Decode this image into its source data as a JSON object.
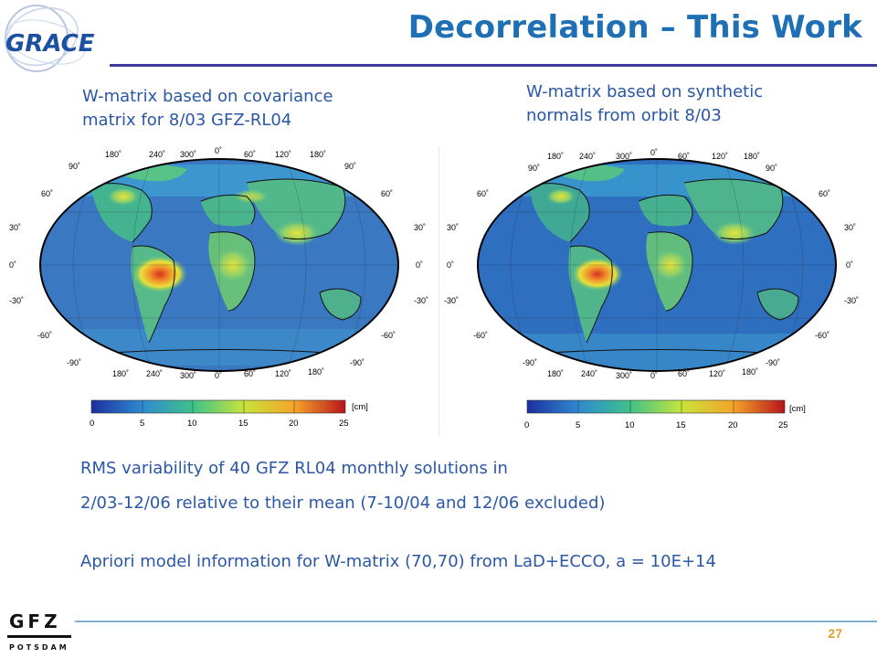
{
  "logo": {
    "text": "GRACE"
  },
  "title": "Decorrelation – This Work",
  "captions": {
    "left": [
      "W-matrix based on covariance",
      "matrix for 8/03 GFZ-RL04"
    ],
    "right": [
      "W-matrix based on synthetic",
      "normals from orbit 8/03"
    ]
  },
  "maps": {
    "lat_labels": [
      "90˚",
      "60˚",
      "30˚",
      "0˚",
      "-30˚",
      "-60˚",
      "-90˚"
    ],
    "lon_top": [
      "180˚",
      "240˚",
      "300˚",
      "0˚",
      "60˚",
      "120˚",
      "180˚"
    ],
    "lon_bottom": [
      "180˚",
      "240˚",
      "300˚",
      "0˚",
      "60˚",
      "120˚",
      "180˚"
    ],
    "colorbar_ticks": [
      "0",
      "5",
      "10",
      "15",
      "20",
      "25"
    ],
    "colorbar_unit": "[cm]"
  },
  "body": {
    "line1": "RMS variability of 40 GFZ RL04 monthly solutions in",
    "line2": "2/03-12/06 relative to their mean (7-10/04 and 12/06 excluded)",
    "line3": "Apriori model information for W-matrix (70,70) from LaD+ECCO, a = 10E+14"
  },
  "footer": {
    "logo_top": "GFZ",
    "logo_bottom": "POTSDAM",
    "page": "27"
  }
}
